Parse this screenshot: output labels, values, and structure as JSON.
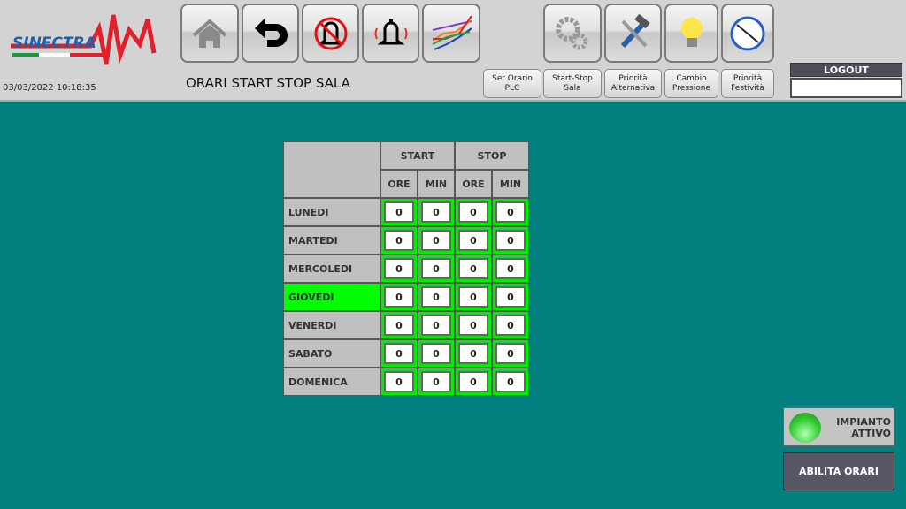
{
  "logo": {
    "text": "SINECTRA"
  },
  "datetime": "03/03/2022 10:18:35",
  "page_title": "ORARI START STOP SALA",
  "toolbar_icons": [
    "home-icon",
    "back-arrow-icon",
    "alarm-off-icon",
    "alarm-bell-icon",
    "trend-chart-icon"
  ],
  "toolbar_right_icons": [
    "gears-icon",
    "tools-icon",
    "light-bulb-icon",
    "clock-icon"
  ],
  "nav_buttons": [
    "Set Orario\nPLC",
    "Start-Stop\nSala",
    "Priorità\nAlternativa",
    "Cambio\nPressione",
    "Priorità\nFestività"
  ],
  "logout": {
    "label": "LOGOUT",
    "value": ""
  },
  "table": {
    "groups": [
      "START",
      "STOP"
    ],
    "subheaders": [
      "ORE",
      "MIN",
      "ORE",
      "MIN"
    ],
    "rows": [
      {
        "day": "LUNEDI",
        "values": [
          "0",
          "0",
          "0",
          "0"
        ]
      },
      {
        "day": "MARTEDI",
        "values": [
          "0",
          "0",
          "0",
          "0"
        ]
      },
      {
        "day": "MERCOLEDI",
        "values": [
          "0",
          "0",
          "0",
          "0"
        ]
      },
      {
        "day": "GIOVEDI",
        "values": [
          "0",
          "0",
          "0",
          "0"
        ],
        "highlighted": true
      },
      {
        "day": "VENERDI",
        "values": [
          "0",
          "0",
          "0",
          "0"
        ]
      },
      {
        "day": "SABATO",
        "values": [
          "0",
          "0",
          "0",
          "0"
        ]
      },
      {
        "day": "DOMENICA",
        "values": [
          "0",
          "0",
          "0",
          "0"
        ]
      }
    ]
  },
  "status": {
    "label": "IMPIANTO\nATTIVO",
    "color": "#33cc33"
  },
  "enable_button": "ABILITA ORARI",
  "colors": {
    "background": "#027f7f",
    "highlight": "#00ff00"
  }
}
